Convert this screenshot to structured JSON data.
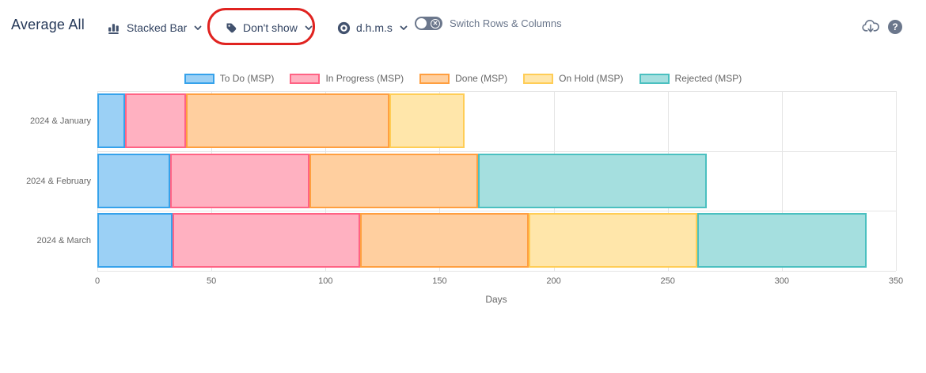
{
  "header": {
    "title": "Average All",
    "toolbar": {
      "chart_type_label": "Stacked Bar",
      "data_labels_label": "Don't show",
      "duration_format_label": "d.h.m.s",
      "switch_label": "Switch Rows & Columns",
      "switch_state": "off",
      "help_glyph": "?"
    },
    "annotation": {
      "shape": "red-ellipse",
      "color": "#e02320",
      "around": "data_labels_dropdown"
    },
    "icon_color": "#42526e",
    "action_icon_color": "#6b778c"
  },
  "chart_data": {
    "type": "bar",
    "orientation": "horizontal",
    "stacked": true,
    "title": "Average All",
    "categories": [
      "2024 & January",
      "2024 & February",
      "2024 & March"
    ],
    "series": [
      {
        "name": "To Do (MSP)",
        "border": "#36a2eb",
        "fill": "#9bd0f5",
        "values": [
          12,
          32,
          33
        ]
      },
      {
        "name": "In Progress (MSP)",
        "border": "#ff6384",
        "fill": "#ffb1c1",
        "values": [
          27,
          61,
          82
        ]
      },
      {
        "name": "Done (MSP)",
        "border": "#ff9f40",
        "fill": "#ffcf9f",
        "values": [
          89,
          74,
          74
        ]
      },
      {
        "name": "On Hold (MSP)",
        "border": "#ffcd56",
        "fill": "#ffe6aa",
        "values": [
          33,
          0,
          74
        ]
      },
      {
        "name": "Rejected (MSP)",
        "border": "#4bc0c0",
        "fill": "#a5dfdf",
        "values": [
          0,
          100,
          74
        ]
      }
    ],
    "totals": [
      161,
      267,
      337
    ],
    "xlabel": "Days",
    "xlim": [
      0,
      350
    ],
    "xticks": [
      0,
      50,
      100,
      150,
      200,
      250,
      300,
      350
    ],
    "legend_position": "top",
    "grid": true,
    "gridline_color": "#e5e5e5"
  }
}
